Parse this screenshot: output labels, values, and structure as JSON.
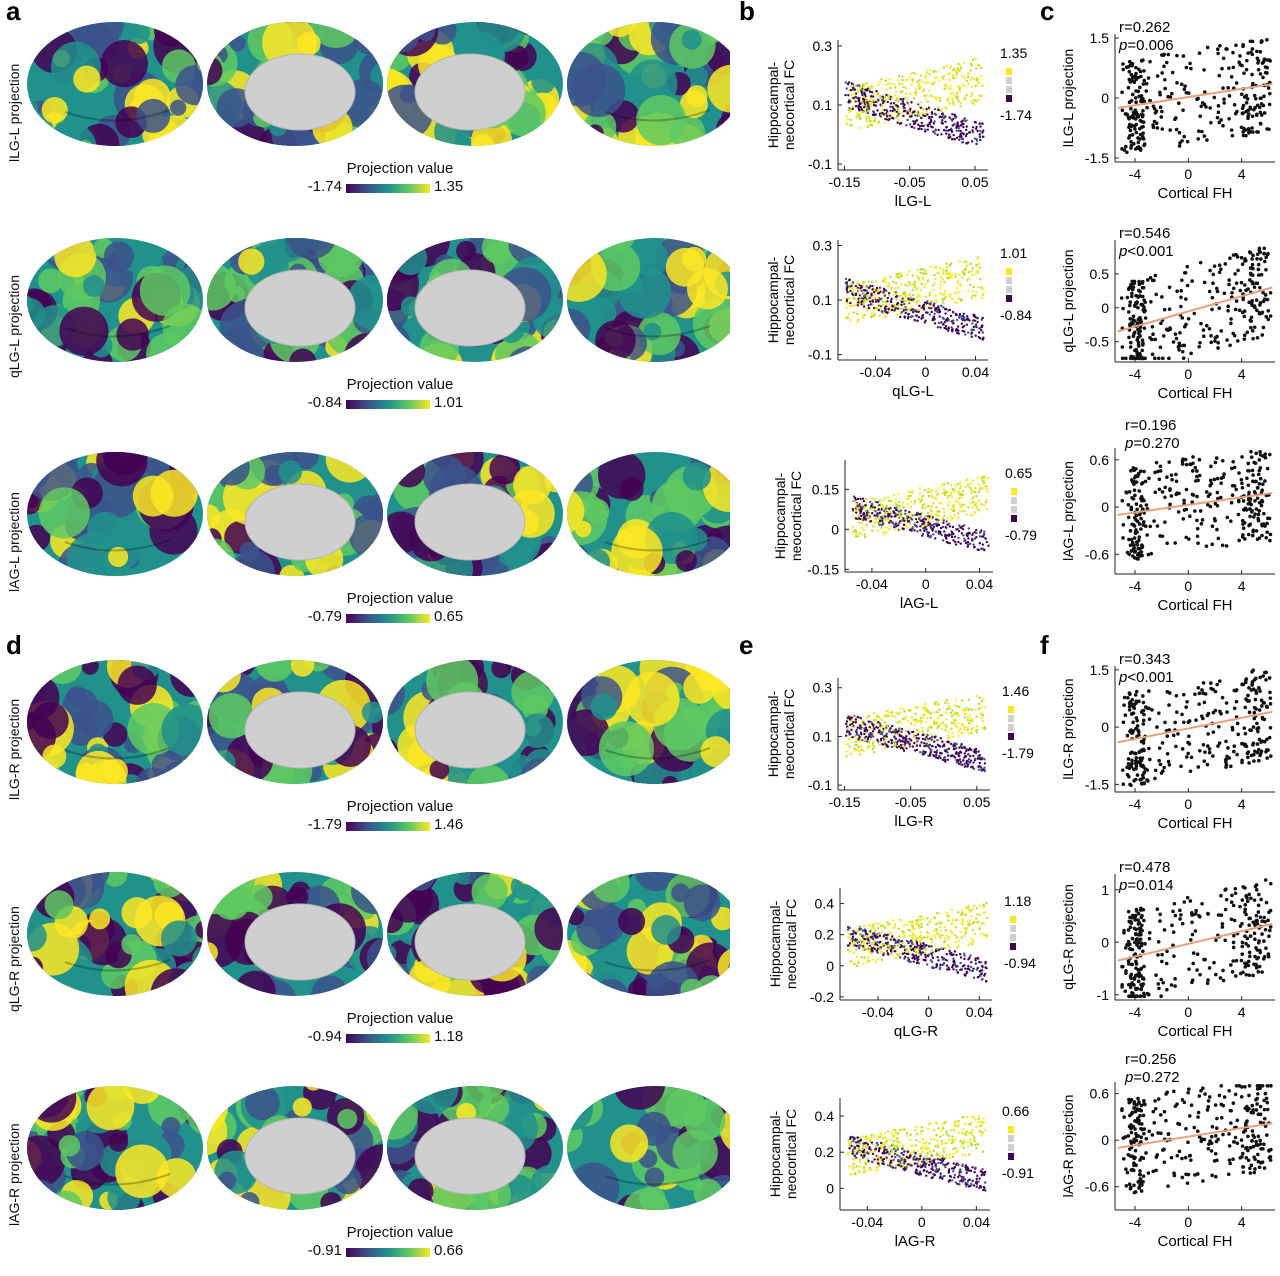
{
  "panel_letters": {
    "a": "a",
    "b": "b",
    "c": "c",
    "d": "d",
    "e": "e",
    "f": "f"
  },
  "colormap": [
    "#440154",
    "#3b528b",
    "#21918c",
    "#5ec962",
    "#fde725"
  ],
  "brain_rows": [
    {
      "row_label": "lLG-L projection",
      "cb_title": "Projection value",
      "cb_min": "-1.74",
      "cb_max": "1.35"
    },
    {
      "row_label": "qLG-L projection",
      "cb_title": "Projection value",
      "cb_min": "-0.84",
      "cb_max": "1.01"
    },
    {
      "row_label": "lAG-L projection",
      "cb_title": "Projection value",
      "cb_min": "-0.79",
      "cb_max": "0.65"
    },
    {
      "row_label": "lLG-R projection",
      "cb_title": "Projection value",
      "cb_min": "-1.79",
      "cb_max": "1.46"
    },
    {
      "row_label": "qLG-R projection",
      "cb_title": "Projection value",
      "cb_min": "-0.94",
      "cb_max": "1.18"
    },
    {
      "row_label": "lAG-R projection",
      "cb_title": "Projection value",
      "cb_min": "-0.91",
      "cb_max": "0.66"
    }
  ],
  "chart_data": [
    {
      "type": "scatter",
      "panel": "b",
      "ylabel": "Hippocampal-\nneocortical FC",
      "xlabel": "lLG-L",
      "xticks": [
        "-0.15",
        "-0.05",
        "0.05"
      ],
      "yticks": [
        "0.3",
        "0.1",
        "-0.1"
      ],
      "xlim": [
        -0.16,
        0.07
      ],
      "ylim": [
        -0.12,
        0.32
      ],
      "legend_max": "1.35",
      "legend_min": "-1.74"
    },
    {
      "type": "scatter",
      "panel": "b",
      "ylabel": "Hippocampal-\nneocortical FC",
      "xlabel": "qLG-L",
      "xticks": [
        "-0.04",
        "0",
        "0.04"
      ],
      "yticks": [
        "0.3",
        "0.1",
        "-0.1"
      ],
      "xlim": [
        -0.07,
        0.05
      ],
      "ylim": [
        -0.12,
        0.32
      ],
      "legend_max": "1.01",
      "legend_min": "-0.84"
    },
    {
      "type": "scatter",
      "panel": "b",
      "ylabel": "Hippocampal-\nneocortical FC",
      "xlabel": "lAG-L",
      "xticks": [
        "-0.04",
        "0",
        "0.04"
      ],
      "yticks": [
        "0.15",
        "0",
        "-0.15"
      ],
      "xlim": [
        -0.06,
        0.05
      ],
      "ylim": [
        -0.16,
        0.26
      ],
      "legend_max": "0.65",
      "legend_min": "-0.79"
    },
    {
      "type": "scatter",
      "panel": "e",
      "ylabel": "Hippocampal-\nneocortical FC",
      "xlabel": "lLG-R",
      "xticks": [
        "-0.15",
        "-0.05",
        "0.05"
      ],
      "yticks": [
        "0.3",
        "0.1",
        "-0.1"
      ],
      "xlim": [
        -0.16,
        0.07
      ],
      "ylim": [
        -0.12,
        0.34
      ],
      "legend_max": "1.46",
      "legend_min": "-1.79"
    },
    {
      "type": "scatter",
      "panel": "e",
      "ylabel": "Hippocampal-\nneocortical FC",
      "xlabel": "qLG-R",
      "xticks": [
        "-0.04",
        "0",
        "0.04"
      ],
      "yticks": [
        "0.4",
        "0.2",
        "0",
        "-0.2"
      ],
      "xlim": [
        -0.07,
        0.05
      ],
      "ylim": [
        -0.22,
        0.5
      ],
      "legend_max": "1.18",
      "legend_min": "-0.94"
    },
    {
      "type": "scatter",
      "panel": "e",
      "ylabel": "Hippocampal-\nneocortical FC",
      "xlabel": "lAG-R",
      "xticks": [
        "-0.04",
        "0",
        "0.04"
      ],
      "yticks": [
        "0.4",
        "0.2",
        "0"
      ],
      "xlim": [
        -0.06,
        0.05
      ],
      "ylim": [
        -0.12,
        0.5
      ],
      "legend_max": "0.66",
      "legend_min": "-0.91"
    },
    {
      "type": "scatter",
      "panel": "c",
      "ylabel": "lLG-L projection",
      "xlabel": "Cortical FH",
      "xticks": [
        "-4",
        "0",
        "4"
      ],
      "yticks": [
        "1.5",
        "0",
        "-1.5"
      ],
      "xlim": [
        -5.5,
        6.5
      ],
      "ylim": [
        -1.6,
        1.6
      ],
      "r_text": "r=0.262",
      "p_text": "p=0.006",
      "fit": [
        -0.25,
        0.35
      ]
    },
    {
      "type": "scatter",
      "panel": "c",
      "ylabel": "qLG-L projection",
      "xlabel": "Cortical FH",
      "xticks": [
        "-4",
        "0",
        "4"
      ],
      "yticks": [
        "0.5",
        "0",
        "-0.5"
      ],
      "xlim": [
        -5.5,
        6.5
      ],
      "ylim": [
        -0.8,
        1.0
      ],
      "r_text": "r=0.546",
      "p_text": "p<0.001",
      "fit": [
        -0.35,
        0.3
      ]
    },
    {
      "type": "scatter",
      "panel": "c",
      "ylabel": "lAG-L projection",
      "xlabel": "Cortical FH",
      "xticks": [
        "-4",
        "0",
        "4"
      ],
      "yticks": [
        "0.6",
        "0",
        "-0.6"
      ],
      "xlim": [
        -5.5,
        6.5
      ],
      "ylim": [
        -0.85,
        0.75
      ],
      "r_text": "r=0.196",
      "p_text": "p=0.270",
      "fit": [
        -0.1,
        0.18
      ]
    },
    {
      "type": "scatter",
      "panel": "f",
      "ylabel": "lLG-R projection",
      "xlabel": "Cortical FH",
      "xticks": [
        "-4",
        "0",
        "4"
      ],
      "yticks": [
        "1.5",
        "0",
        "-1.5"
      ],
      "xlim": [
        -5.5,
        6.5
      ],
      "ylim": [
        -1.7,
        1.6
      ],
      "r_text": "r=0.343",
      "p_text": "p<0.001",
      "fit": [
        -0.4,
        0.4
      ]
    },
    {
      "type": "scatter",
      "panel": "f",
      "ylabel": "qLG-R projection",
      "xlabel": "Cortical FH",
      "xticks": [
        "-4",
        "0",
        "4"
      ],
      "yticks": [
        "1",
        "0",
        "-1"
      ],
      "xlim": [
        -5.5,
        6.5
      ],
      "ylim": [
        -1.1,
        1.3
      ],
      "r_text": "r=0.478",
      "p_text": "p=0.014",
      "fit": [
        -0.35,
        0.35
      ]
    },
    {
      "type": "scatter",
      "panel": "f",
      "ylabel": "lAG-R projection",
      "xlabel": "Cortical FH",
      "xticks": [
        "-4",
        "0",
        "4"
      ],
      "yticks": [
        "0.6",
        "0",
        "-0.6"
      ],
      "xlim": [
        -5.5,
        6.5
      ],
      "ylim": [
        -0.9,
        0.75
      ],
      "r_text": "r=0.256",
      "p_text": "p=0.272",
      "fit": [
        -0.1,
        0.22
      ]
    }
  ]
}
